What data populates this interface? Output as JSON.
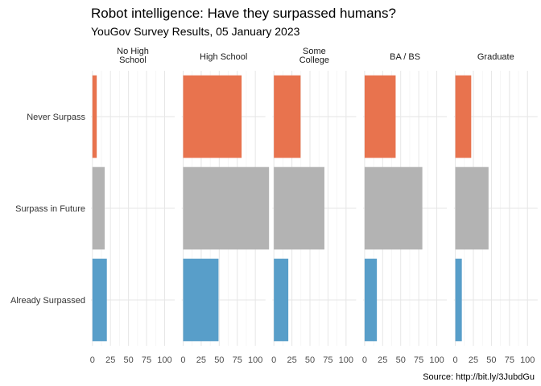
{
  "chart_data": {
    "type": "bar",
    "orientation": "horizontal",
    "title": "Robot intelligence: Have they surpassed humans?",
    "subtitle": "YouGov Survey Results, 05 January 2023",
    "caption": "Source: http://bit.ly/3JubdGu",
    "categories": [
      "Never Surpass",
      "Surpass in Future",
      "Already Surpassed"
    ],
    "category_colors": [
      "#E8734E",
      "#B3B3B3",
      "#589EC9"
    ],
    "xticks": [
      0,
      25,
      50,
      75,
      100
    ],
    "xlim": [
      -2,
      114
    ],
    "grid": true,
    "legend": "none",
    "panels": [
      {
        "label": [
          "No High",
          "School"
        ],
        "values": [
          6,
          17,
          20
        ]
      },
      {
        "label": [
          "High School"
        ],
        "values": [
          81,
          119,
          49
        ]
      },
      {
        "label": [
          "Some",
          "College"
        ],
        "values": [
          37,
          70,
          20
        ]
      },
      {
        "label": [
          "BA / BS"
        ],
        "values": [
          43,
          80,
          17
        ]
      },
      {
        "label": [
          "Graduate"
        ],
        "values": [
          22,
          46,
          9
        ]
      }
    ]
  }
}
